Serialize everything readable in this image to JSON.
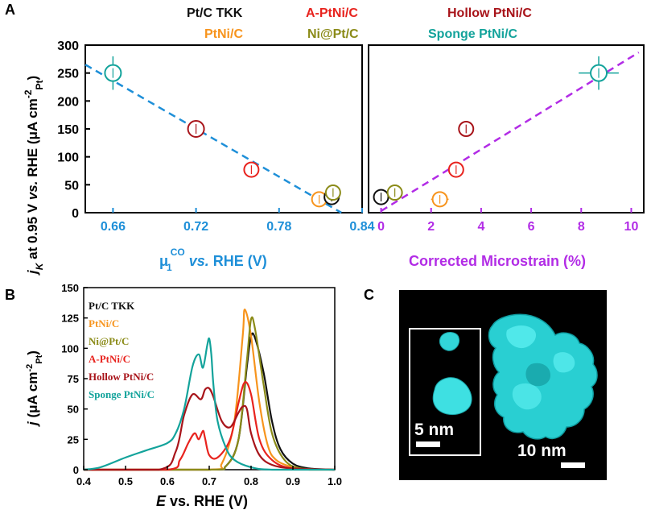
{
  "panel_labels": {
    "a": "A",
    "b": "B",
    "c": "C"
  },
  "legend_top": [
    {
      "label": "Pt/C TKK",
      "color": "#111111"
    },
    {
      "label": "A-PtNi/C",
      "color": "#e8231e"
    },
    {
      "label": "Hollow PtNi/C",
      "color": "#a8141a"
    },
    {
      "label": "PtNi/C",
      "color": "#f7941d"
    },
    {
      "label": "Ni@Pt/C",
      "color": "#8b8b18"
    },
    {
      "label": "Sponge PtNi/C",
      "color": "#13a39b"
    }
  ],
  "ylabel_a": {
    "main": "j",
    "sub1": "K",
    "mid": " at 0.95 V ",
    "vs": "vs.",
    "rest": " RHE (μA cm",
    "sup": "-2",
    "sub2": "Pt",
    "end": ")"
  },
  "xlabel_a1": {
    "mu": "μ",
    "sub": "1",
    "sup": "CO",
    "vs": " vs.",
    "rest": " RHE (V)"
  },
  "xlabel_a2": "Corrected Microstrain (%)",
  "ylabel_b": {
    "j": "j",
    "rest": "  (μA cm",
    "sup": "-2",
    "sub": "Pt",
    "end": ")"
  },
  "xlabel_b": {
    "e": "E",
    "rest": " vs. RHE (V)"
  },
  "scalebar_inset": "5 nm",
  "scalebar_main": "10 nm",
  "chart_data": [
    {
      "type": "scatter",
      "panel": "A-left",
      "xlabel": "μ1CO vs. RHE (V)",
      "ylabel": "jK at 0.95 V vs. RHE (μA cm-2Pt)",
      "xlim": [
        0.64,
        0.84
      ],
      "ylim": [
        0,
        300
      ],
      "xticks": [
        "0.66",
        "0.72",
        "0.78",
        "0.84"
      ],
      "yticks": [
        "0",
        "50",
        "100",
        "150",
        "200",
        "250",
        "300"
      ],
      "points": [
        {
          "name": "Sponge PtNi/C",
          "x": 0.66,
          "y": 250,
          "yerr": 30,
          "color": "#13a39b",
          "r": 10
        },
        {
          "name": "Hollow PtNi/C",
          "x": 0.72,
          "y": 150,
          "yerr": 10,
          "color": "#a8141a",
          "r": 10
        },
        {
          "name": "A-PtNi/C",
          "x": 0.76,
          "y": 77,
          "yerr": 12,
          "color": "#e8231e",
          "r": 9
        },
        {
          "name": "PtNi/C",
          "x": 0.809,
          "y": 24,
          "yerr": 14,
          "color": "#f7941d",
          "r": 9
        },
        {
          "name": "Pt/C TKK",
          "x": 0.818,
          "y": 28,
          "yerr": 6,
          "color": "#111111",
          "r": 9
        },
        {
          "name": "Ni@Pt/C",
          "x": 0.819,
          "y": 36,
          "yerr": 7,
          "color": "#8b8b18",
          "r": 9
        }
      ],
      "fit_line": {
        "x": [
          0.64,
          0.825
        ],
        "y": [
          265,
          0
        ],
        "color": "#1e8fd8"
      }
    },
    {
      "type": "scatter",
      "panel": "A-right",
      "xlabel": "Corrected Microstrain (%)",
      "xlim": [
        -0.5,
        10.5
      ],
      "ylim": [
        0,
        300
      ],
      "xticks": [
        "0",
        "2",
        "4",
        "6",
        "8",
        "10"
      ],
      "points": [
        {
          "name": "Pt/C TKK",
          "x": 0.0,
          "y": 28,
          "yerr": 14,
          "xerr": 0,
          "color": "#111111",
          "r": 9
        },
        {
          "name": "Ni@Pt/C",
          "x": 0.55,
          "y": 36,
          "yerr": 7,
          "xerr": 0,
          "color": "#8b8b18",
          "r": 9
        },
        {
          "name": "PtNi/C",
          "x": 2.35,
          "y": 24,
          "yerr": 8,
          "xerr": 0.35,
          "color": "#f7941d",
          "r": 9
        },
        {
          "name": "A-PtNi/C",
          "x": 3.0,
          "y": 77,
          "yerr": 10,
          "xerr": 0.3,
          "color": "#e8231e",
          "r": 9
        },
        {
          "name": "Hollow PtNi/C",
          "x": 3.4,
          "y": 150,
          "yerr": 8,
          "xerr": 0.3,
          "color": "#a8141a",
          "r": 9
        },
        {
          "name": "Sponge PtNi/C",
          "x": 8.7,
          "y": 250,
          "yerr": 30,
          "xerr": 0.8,
          "color": "#13a39b",
          "r": 10
        }
      ],
      "fit_line": {
        "x": [
          0.0,
          10.3
        ],
        "y": [
          3,
          287
        ],
        "color": "#b22ce6"
      }
    },
    {
      "type": "line",
      "panel": "B",
      "xlabel": "E vs. RHE (V)",
      "ylabel": "j (μA cm-2Pt)",
      "xlim": [
        0.4,
        1.0
      ],
      "ylim": [
        0,
        150
      ],
      "xticks": [
        "0.4",
        "0.5",
        "0.6",
        "0.7",
        "0.8",
        "0.9",
        "1.0"
      ],
      "yticks": [
        "0",
        "25",
        "50",
        "75",
        "100",
        "125",
        "150"
      ],
      "legend": [
        "Pt/C TKK",
        "PtNi/C",
        "Ni@Pt/C",
        "A-PtNi/C",
        "Hollow PtNi/C",
        "Sponge PtNi/C"
      ],
      "series": [
        {
          "name": "Pt/C TKK",
          "color": "#111111",
          "x": [
            0.4,
            0.7,
            0.74,
            0.77,
            0.79,
            0.8,
            0.81,
            0.83,
            0.85,
            0.87,
            0.9,
            0.94,
            1.0
          ],
          "y": [
            0,
            0,
            3,
            25,
            85,
            110,
            108,
            80,
            40,
            17,
            5,
            1,
            0
          ]
        },
        {
          "name": "PtNi/C",
          "color": "#f7941d",
          "x": [
            0.4,
            0.7,
            0.73,
            0.76,
            0.78,
            0.785,
            0.8,
            0.82,
            0.84,
            0.86,
            0.9,
            0.94,
            1.0
          ],
          "y": [
            0,
            0,
            5,
            40,
            110,
            132,
            110,
            55,
            20,
            8,
            2,
            0,
            0
          ]
        },
        {
          "name": "Ni@Pt/C",
          "color": "#8b8b18",
          "x": [
            0.4,
            0.7,
            0.74,
            0.77,
            0.79,
            0.8,
            0.81,
            0.83,
            0.85,
            0.88,
            0.92,
            1.0
          ],
          "y": [
            0,
            0,
            3,
            25,
            90,
            124,
            115,
            70,
            30,
            8,
            1,
            0
          ]
        },
        {
          "name": "A-PtNi/C",
          "color": "#e8231e",
          "x": [
            0.4,
            0.6,
            0.63,
            0.65,
            0.665,
            0.675,
            0.685,
            0.69,
            0.7,
            0.72,
            0.75,
            0.77,
            0.785,
            0.8,
            0.82,
            0.85,
            0.9,
            1.0
          ],
          "y": [
            0,
            0,
            8,
            22,
            30,
            25,
            32,
            26,
            12,
            10,
            25,
            55,
            72,
            62,
            25,
            8,
            1,
            0
          ]
        },
        {
          "name": "Hollow PtNi/C",
          "color": "#a8141a",
          "x": [
            0.4,
            0.58,
            0.62,
            0.64,
            0.66,
            0.68,
            0.69,
            0.7,
            0.71,
            0.73,
            0.75,
            0.77,
            0.78,
            0.79,
            0.8,
            0.82,
            0.85,
            0.9,
            1.0
          ],
          "y": [
            0,
            0,
            15,
            45,
            62,
            58,
            66,
            67,
            60,
            40,
            35,
            47,
            52,
            50,
            30,
            12,
            4,
            1,
            0
          ]
        },
        {
          "name": "Sponge PtNi/C",
          "color": "#13a39b",
          "x": [
            0.4,
            0.44,
            0.5,
            0.55,
            0.6,
            0.62,
            0.64,
            0.66,
            0.675,
            0.685,
            0.695,
            0.7,
            0.705,
            0.71,
            0.72,
            0.74,
            0.76,
            0.8,
            0.85,
            1.0
          ],
          "y": [
            0,
            2,
            10,
            16,
            22,
            30,
            50,
            85,
            95,
            84,
            102,
            108,
            95,
            70,
            40,
            18,
            8,
            2,
            0,
            0
          ]
        }
      ]
    }
  ]
}
